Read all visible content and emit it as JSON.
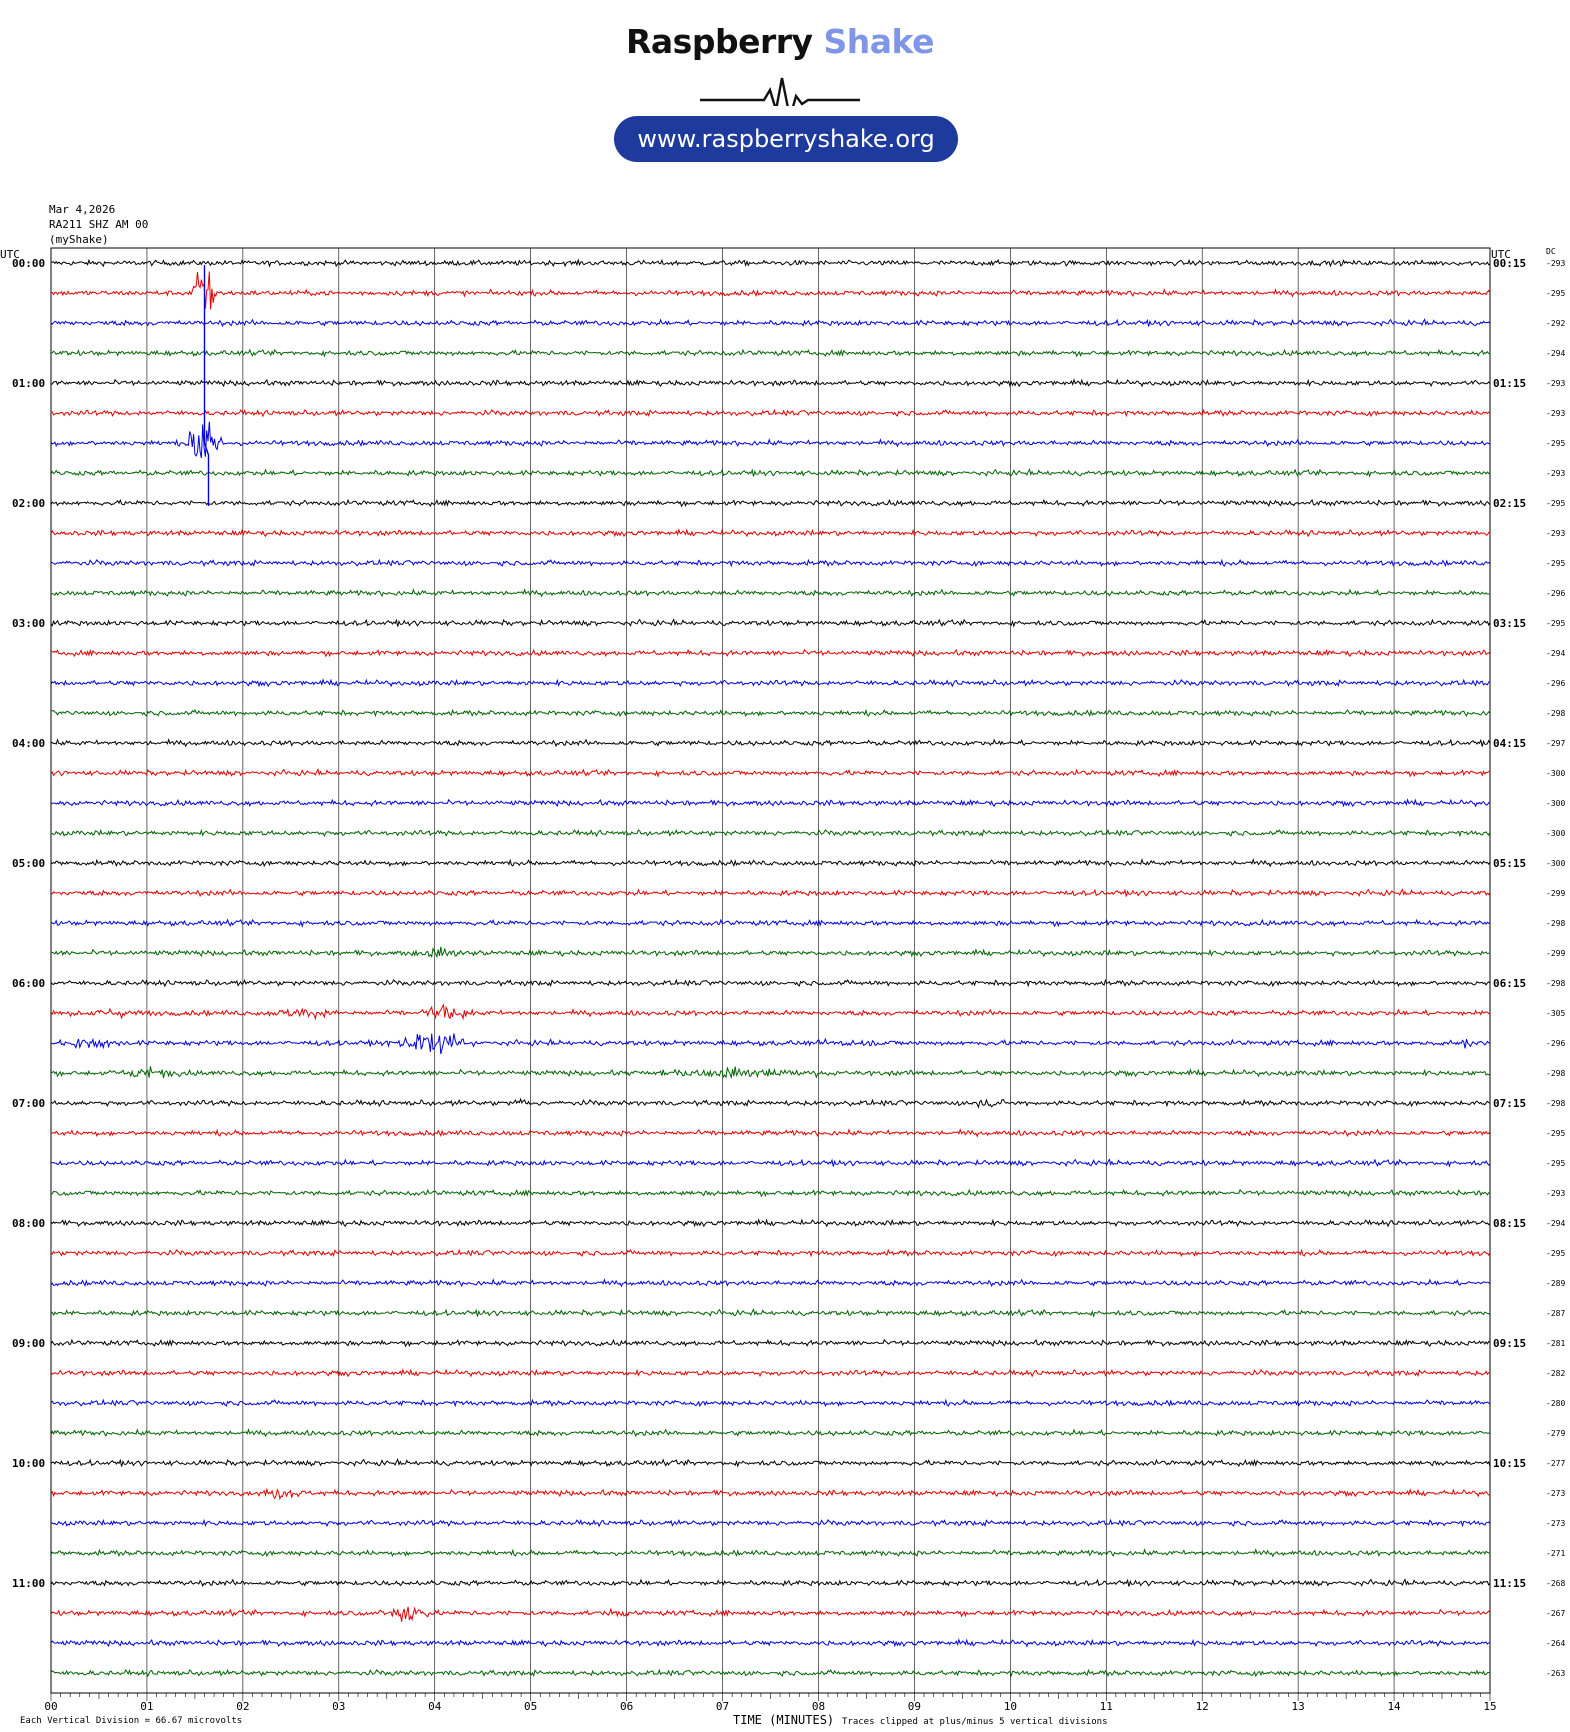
{
  "logo": {
    "brand_dark": "Raspberry",
    "brand_light": "Shake",
    "website": "www.raspberryshake.org",
    "colors": {
      "dark": "#111111",
      "light": "#7f95e8",
      "pill": "#1d3a9c"
    }
  },
  "header": {
    "date": "Mar 4,2026",
    "station": "RA211 SHZ AM 00",
    "source": "(myShake)"
  },
  "footer": {
    "division": "Each Vertical Division =   66.67 microvolts",
    "xlabel": "TIME (MINUTES)",
    "clip_note": "Traces clipped at plus/minus 5 vertical divisions"
  },
  "chart_data": {
    "type": "line",
    "title": "",
    "xlabel": "TIME (MINUTES)",
    "ylabel": "UTC",
    "right_axis_label": "UTC",
    "dc_label": "DC",
    "x_ticks": [
      "00",
      "01",
      "02",
      "03",
      "04",
      "05",
      "06",
      "07",
      "08",
      "09",
      "10",
      "11",
      "12",
      "13",
      "14",
      "15"
    ],
    "xlim": [
      0,
      15
    ],
    "grid": true,
    "trace_colors": [
      "#000000",
      "#e00000",
      "#0000e0",
      "#006400"
    ],
    "hour_labels_left": [
      "00:00",
      "01:00",
      "02:00",
      "03:00",
      "04:00",
      "05:00",
      "06:00",
      "07:00",
      "08:00",
      "09:00",
      "10:00",
      "11:00"
    ],
    "hour_labels_right": [
      "00:15",
      "01:15",
      "02:15",
      "03:15",
      "04:15",
      "05:15",
      "06:15",
      "07:15",
      "08:15",
      "09:15",
      "10:15",
      "11:15"
    ],
    "dc_offsets": [
      -293,
      -295,
      -292,
      -294,
      -293,
      -293,
      -295,
      -293,
      -295,
      -293,
      -295,
      -296,
      -295,
      -294,
      -296,
      -298,
      -297,
      -300,
      -300,
      -300,
      -300,
      -299,
      -298,
      -299,
      -298,
      -305,
      -296,
      -298,
      -298,
      -295,
      -295,
      -293,
      -294,
      -295,
      -289,
      -287,
      -281,
      -282,
      -280,
      -279,
      -277,
      -273,
      -273,
      -271,
      -268,
      -267,
      -264,
      -263
    ],
    "events": [
      {
        "trace": 1,
        "minute": 1.6,
        "amplitude": 5,
        "duration": 0.15,
        "note": "spike"
      },
      {
        "trace": 6,
        "minute": 1.6,
        "amplitude": 5,
        "duration": 0.2
      },
      {
        "trace": 23,
        "minute": 4.1,
        "amplitude": 0.6,
        "duration": 0.4
      },
      {
        "trace": 25,
        "minute": 0.6,
        "amplitude": 0.5,
        "duration": 0.5
      },
      {
        "trace": 25,
        "minute": 2.6,
        "amplitude": 0.6,
        "duration": 0.4
      },
      {
        "trace": 25,
        "minute": 4.1,
        "amplitude": 1.0,
        "duration": 0.4
      },
      {
        "trace": 26,
        "minute": 0.4,
        "amplitude": 0.6,
        "duration": 0.4
      },
      {
        "trace": 26,
        "minute": 4.0,
        "amplitude": 1.5,
        "duration": 0.5
      },
      {
        "trace": 26,
        "minute": 8.3,
        "amplitude": 0.4,
        "duration": 0.4
      },
      {
        "trace": 26,
        "minute": 14.7,
        "amplitude": 0.5,
        "duration": 0.4
      },
      {
        "trace": 27,
        "minute": 1.0,
        "amplitude": 0.7,
        "duration": 0.4
      },
      {
        "trace": 27,
        "minute": 7.2,
        "amplitude": 0.6,
        "duration": 1.2
      },
      {
        "trace": 28,
        "minute": 4.9,
        "amplitude": 0.8,
        "duration": 0.1
      },
      {
        "trace": 28,
        "minute": 9.8,
        "amplitude": 0.4,
        "duration": 0.3
      },
      {
        "trace": 41,
        "minute": 2.4,
        "amplitude": 0.6,
        "duration": 0.4
      },
      {
        "trace": 45,
        "minute": 3.7,
        "amplitude": 1.6,
        "duration": 0.3
      },
      {
        "trace": 45,
        "minute": 5.9,
        "amplitude": 0.4,
        "duration": 0.2
      }
    ]
  }
}
